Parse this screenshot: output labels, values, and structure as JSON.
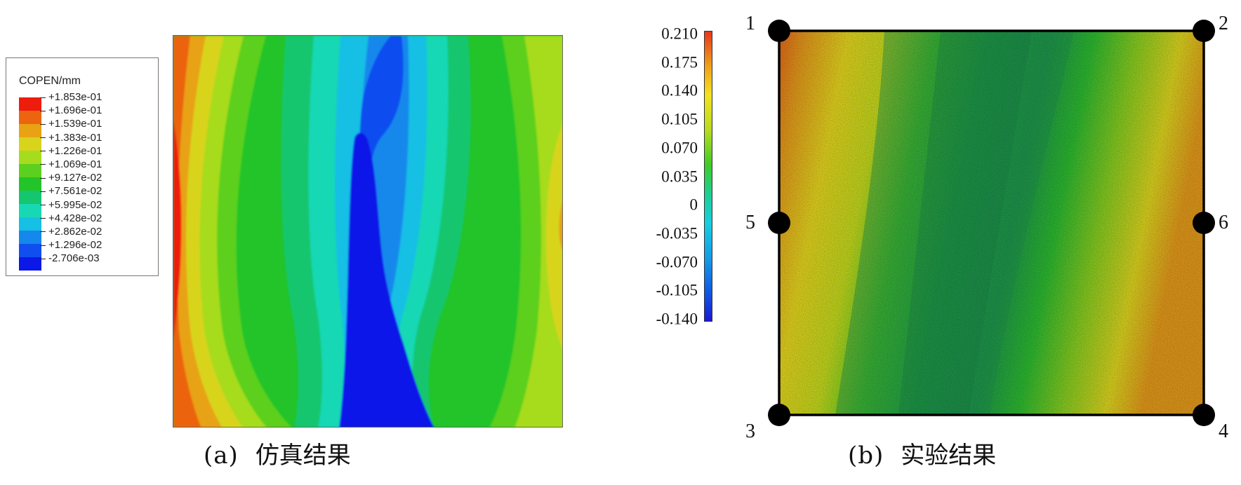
{
  "figure": {
    "panel_a": {
      "caption_label": "(a)",
      "caption_text": "仿真结果",
      "legend": {
        "title": "COPEN/mm",
        "colors": [
          "#ee1c0c",
          "#ec6410",
          "#e8a214",
          "#d8d41c",
          "#a6dc1e",
          "#5cd01e",
          "#22c42a",
          "#14c66e",
          "#18d8b4",
          "#16bfe4",
          "#1488ec",
          "#104ef0",
          "#0c18e8"
        ],
        "values": [
          "+1.853e-01",
          "+1.696e-01",
          "+1.539e-01",
          "+1.383e-01",
          "+1.226e-01",
          "+1.069e-01",
          "+9.127e-02",
          "+7.561e-02",
          "+5.995e-02",
          "+4.428e-02",
          "+2.862e-02",
          "+1.296e-02",
          "-2.706e-03"
        ]
      }
    },
    "panel_b": {
      "caption_label": "(b)",
      "caption_text": "实验结果",
      "colorbar_ticks": [
        "0.210",
        "0.175",
        "0.140",
        "0.105",
        "0.070",
        "0.035",
        "0",
        "-0.035",
        "-0.070",
        "-0.105",
        "-0.140"
      ],
      "point_labels": [
        "1",
        "2",
        "3",
        "4",
        "5",
        "6"
      ]
    }
  }
}
